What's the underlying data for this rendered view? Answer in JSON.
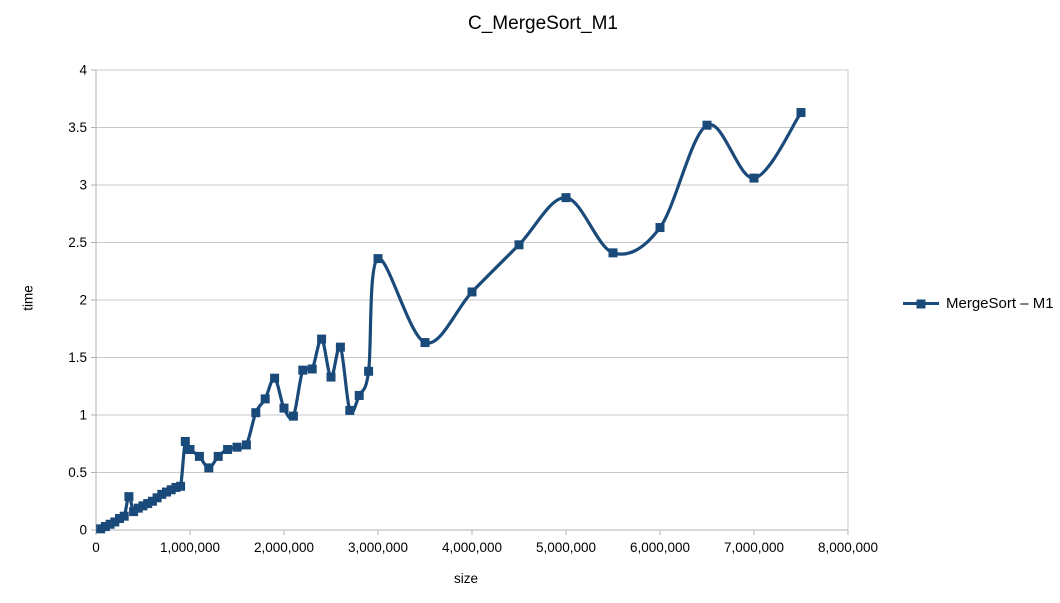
{
  "title": "C_MergeSort_M1",
  "legend": {
    "label": "MergeSort – M1"
  },
  "colors": {
    "series": "#1a4a7a",
    "gridline": "#c8c8c8",
    "axis": "#b3b3b3",
    "text": "#000000",
    "background": "#ffffff"
  },
  "chart_data": {
    "type": "line",
    "title": "C_MergeSort_M1",
    "xlabel": "size",
    "ylabel": "time",
    "legend_entries": [
      "MergeSort – M1"
    ],
    "legend_position": "right",
    "grid": "horizontal-only",
    "smooth": true,
    "marker": "square",
    "xlim": [
      0,
      8000000
    ],
    "ylim": [
      0,
      4
    ],
    "x_tick_values": [
      0,
      1000000,
      2000000,
      3000000,
      4000000,
      5000000,
      6000000,
      7000000,
      8000000
    ],
    "x_tick_labels": [
      "0",
      "1,000,000",
      "2,000,000",
      "3,000,000",
      "4,000,000",
      "5,000,000",
      "6,000,000",
      "7,000,000",
      "8,000,000"
    ],
    "y_tick_values": [
      0,
      0.5,
      1,
      1.5,
      2,
      2.5,
      3,
      3.5,
      4
    ],
    "y_tick_labels": [
      "0",
      "0.5",
      "1",
      "1.5",
      "2",
      "2.5",
      "3",
      "3.5",
      "4"
    ],
    "series": [
      {
        "name": "MergeSort – M1",
        "color": "#1a4a7a",
        "points": [
          [
            50000,
            0.01
          ],
          [
            100000,
            0.03
          ],
          [
            150000,
            0.05
          ],
          [
            200000,
            0.07
          ],
          [
            250000,
            0.1
          ],
          [
            300000,
            0.12
          ],
          [
            350000,
            0.29
          ],
          [
            400000,
            0.16
          ],
          [
            450000,
            0.19
          ],
          [
            500000,
            0.21
          ],
          [
            550000,
            0.23
          ],
          [
            600000,
            0.25
          ],
          [
            650000,
            0.28
          ],
          [
            700000,
            0.31
          ],
          [
            750000,
            0.33
          ],
          [
            800000,
            0.35
          ],
          [
            850000,
            0.37
          ],
          [
            900000,
            0.38
          ],
          [
            950000,
            0.77
          ],
          [
            1000000,
            0.7
          ],
          [
            1100000,
            0.64
          ],
          [
            1200000,
            0.54
          ],
          [
            1300000,
            0.64
          ],
          [
            1400000,
            0.7
          ],
          [
            1500000,
            0.72
          ],
          [
            1600000,
            0.74
          ],
          [
            1700000,
            1.02
          ],
          [
            1800000,
            1.14
          ],
          [
            1900000,
            1.32
          ],
          [
            2000000,
            1.06
          ],
          [
            2100000,
            0.99
          ],
          [
            2200000,
            1.39
          ],
          [
            2300000,
            1.4
          ],
          [
            2400000,
            1.66
          ],
          [
            2500000,
            1.33
          ],
          [
            2600000,
            1.59
          ],
          [
            2700000,
            1.04
          ],
          [
            2800000,
            1.17
          ],
          [
            2900000,
            1.38
          ],
          [
            3000000,
            2.36
          ],
          [
            3500000,
            1.63
          ],
          [
            4000000,
            2.07
          ],
          [
            4500000,
            2.48
          ],
          [
            5000000,
            2.89
          ],
          [
            5500000,
            2.41
          ],
          [
            6000000,
            2.63
          ],
          [
            6500000,
            3.52
          ],
          [
            7000000,
            3.06
          ],
          [
            7500000,
            3.63
          ]
        ]
      }
    ]
  }
}
